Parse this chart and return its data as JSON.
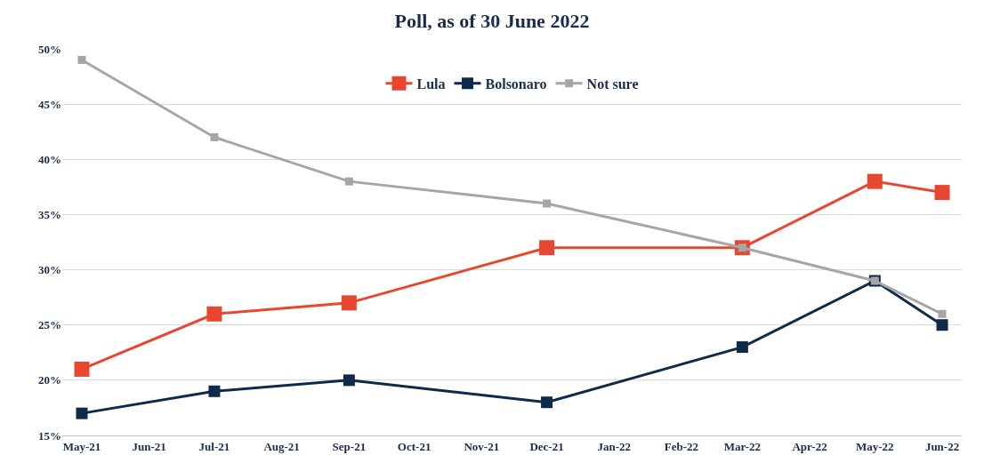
{
  "chart_data": {
    "type": "line",
    "title": "Poll, as of 30 June 2022",
    "x": [
      "2021-05",
      "2021-07",
      "2021-09",
      "2021-12",
      "2022-03",
      "2022-05",
      "2022-06"
    ],
    "series": [
      {
        "name": "Lula",
        "color": "#e8472f",
        "values": [
          21,
          26,
          27,
          32,
          32,
          38,
          37
        ]
      },
      {
        "name": "Bolsonaro",
        "color": "#0d2a4a",
        "values": [
          17,
          19,
          20,
          18,
          23,
          29,
          25
        ]
      },
      {
        "name": "Not sure",
        "color": "#a6a6a6",
        "values": [
          49,
          42,
          38,
          36,
          32,
          29,
          26
        ]
      }
    ],
    "xlim": [
      "2021-04-22",
      "2022-06-10"
    ],
    "xticks": [
      {
        "value": "2021-05",
        "label": "May-21"
      },
      {
        "value": "2021-06",
        "label": "Jun-21"
      },
      {
        "value": "2021-07",
        "label": "Jul-21"
      },
      {
        "value": "2021-08",
        "label": "Aug-21"
      },
      {
        "value": "2021-09",
        "label": "Sep-21"
      },
      {
        "value": "2021-10",
        "label": "Oct-21"
      },
      {
        "value": "2021-11",
        "label": "Nov-21"
      },
      {
        "value": "2021-12",
        "label": "Dec-21"
      },
      {
        "value": "2022-01",
        "label": "Jan-22"
      },
      {
        "value": "2022-02",
        "label": "Feb-22"
      },
      {
        "value": "2022-03",
        "label": "Mar-22"
      },
      {
        "value": "2022-04",
        "label": "Apr-22"
      },
      {
        "value": "2022-05",
        "label": "May-22"
      },
      {
        "value": "2022-06",
        "label": "Jun-22"
      }
    ],
    "ylim": [
      15,
      50
    ],
    "yticks": [
      {
        "value": 15,
        "label": "15%"
      },
      {
        "value": 20,
        "label": "20%"
      },
      {
        "value": 25,
        "label": "25%"
      },
      {
        "value": 30,
        "label": "30%"
      },
      {
        "value": 35,
        "label": "35%"
      },
      {
        "value": 40,
        "label": "40%"
      },
      {
        "value": 45,
        "label": "45%"
      },
      {
        "value": 50,
        "label": "50%"
      }
    ],
    "grid": "y",
    "legend": "top",
    "marker": "square",
    "line_style": "solid"
  }
}
